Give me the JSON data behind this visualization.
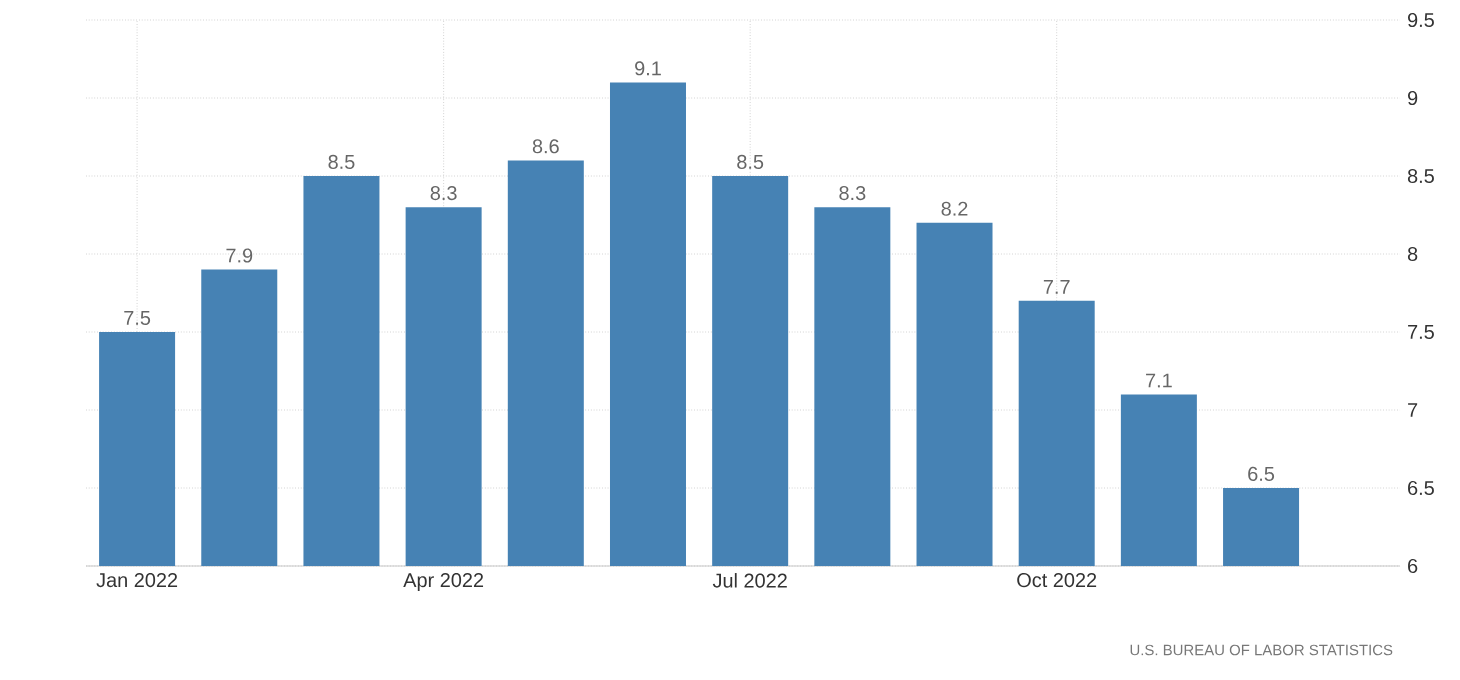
{
  "chart_data": {
    "type": "bar",
    "categories": [
      "Jan 2022",
      null,
      null,
      "Apr 2022",
      null,
      null,
      "Jul 2022",
      null,
      null,
      "Oct 2022",
      null,
      null
    ],
    "values": [
      7.5,
      7.9,
      8.5,
      8.3,
      8.6,
      9.1,
      8.5,
      8.3,
      8.2,
      7.7,
      7.1,
      6.5
    ],
    "color": "#4682b4",
    "ylim": [
      6,
      9.5
    ],
    "yticks": [
      6,
      6.5,
      7,
      7.5,
      8,
      8.5,
      9,
      9.5
    ],
    "grid": true,
    "data_labels": true,
    "annotations": [
      "U.S. BUREAU OF LABOR STATISTICS"
    ]
  }
}
